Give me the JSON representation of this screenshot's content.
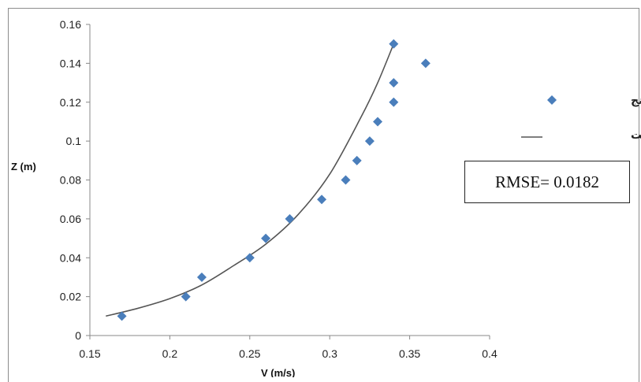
{
  "chart_data": {
    "type": "scatter",
    "title": "",
    "xlabel": "V (m/s)",
    "ylabel": "Z (m)",
    "xlim": [
      0.15,
      0.4
    ],
    "ylim": [
      0,
      0.16
    ],
    "xticks": [
      "0.15",
      "0.2",
      "0.25",
      "0.3",
      "0.35",
      "0.4"
    ],
    "yticks": [
      "0",
      "0.02",
      "0.04",
      "0.06",
      "0.08",
      "0.1",
      "0.12",
      "0.14",
      "0.16"
    ],
    "grid": false,
    "legend_position": "right",
    "series": [
      {
        "name": "سرعت سنج",
        "kind": "scatter",
        "marker": "diamond",
        "color": "#4a7ebb",
        "points": [
          {
            "x": 0.17,
            "y": 0.01
          },
          {
            "x": 0.21,
            "y": 0.02
          },
          {
            "x": 0.22,
            "y": 0.03
          },
          {
            "x": 0.25,
            "y": 0.04
          },
          {
            "x": 0.26,
            "y": 0.05
          },
          {
            "x": 0.275,
            "y": 0.06
          },
          {
            "x": 0.295,
            "y": 0.07
          },
          {
            "x": 0.31,
            "y": 0.08
          },
          {
            "x": 0.317,
            "y": 0.09
          },
          {
            "x": 0.325,
            "y": 0.1
          },
          {
            "x": 0.33,
            "y": 0.11
          },
          {
            "x": 0.34,
            "y": 0.12
          },
          {
            "x": 0.34,
            "y": 0.13
          },
          {
            "x": 0.36,
            "y": 0.14
          },
          {
            "x": 0.34,
            "y": 0.15
          }
        ]
      },
      {
        "name": "تابع پروفیل سرعت",
        "kind": "line",
        "color": "#555555",
        "points": [
          {
            "x": 0.16,
            "y": 0.01
          },
          {
            "x": 0.18,
            "y": 0.014
          },
          {
            "x": 0.2,
            "y": 0.019
          },
          {
            "x": 0.22,
            "y": 0.026
          },
          {
            "x": 0.24,
            "y": 0.036
          },
          {
            "x": 0.26,
            "y": 0.047
          },
          {
            "x": 0.28,
            "y": 0.062
          },
          {
            "x": 0.3,
            "y": 0.083
          },
          {
            "x": 0.32,
            "y": 0.113
          },
          {
            "x": 0.33,
            "y": 0.13
          },
          {
            "x": 0.34,
            "y": 0.15
          }
        ]
      }
    ],
    "annotation": "RMSE= 0.0182"
  }
}
